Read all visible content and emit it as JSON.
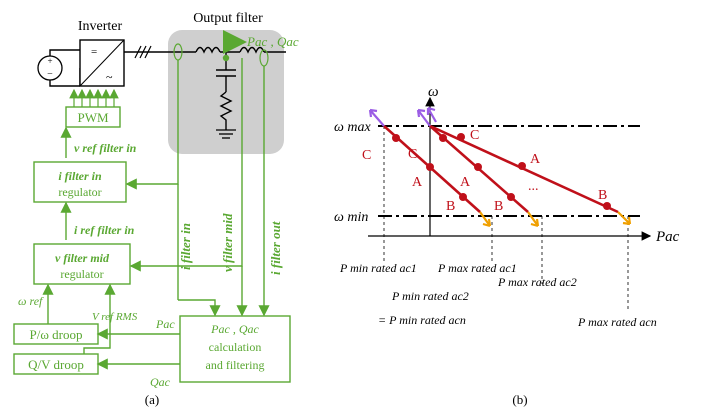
{
  "panel_a": {
    "caption": "(a)",
    "inverter_label": "Inverter",
    "output_filter_label": "Output filter",
    "pac_qac_label": "Pac , Qac",
    "pwm": "PWM",
    "v_ref_filter_in": "v ref filter in",
    "i_filter_in_reg_1": "i filter in",
    "i_filter_in_reg_2": "regulator",
    "i_ref_filter_in": "i ref filter in",
    "v_filter_mid_reg_1": "v filter mid",
    "v_filter_mid_reg_2": "regulator",
    "omega_ref": "ω ref",
    "v_ref_rms": "V ref RMS",
    "p_omega_droop": "P/ω droop",
    "q_v_droop": "Q/V droop",
    "pac": "Pac",
    "qac": "Qac",
    "calc_1": "Pac , Qac",
    "calc_2": "calculation",
    "calc_3": "and filtering",
    "i_filter_in": "i filter in",
    "v_filter_mid": "v filter mid",
    "i_filter_out": "i filter out"
  },
  "panel_b": {
    "caption": "(b)",
    "y_axis": "ω",
    "x_axis": "Pac",
    "omega_max": "ω max",
    "omega_min": "ω min",
    "pmin1": "P min rated ac1",
    "pmax1": "P max rated ac1",
    "pmin2": "P min rated ac2",
    "pmax2": "P max rated ac2",
    "pmin_n": "= P min rated acn",
    "pmax_n": "P max rated acn",
    "point_a": "A",
    "point_b": "B",
    "point_c": "C",
    "ellipsis": "..."
  },
  "colors": {
    "control": "#5aa832",
    "droop_curve": "#c0101a",
    "arrow_up": "#9b5de5",
    "arrow_down": "#f0a000",
    "filter_box": "#cfcfcf"
  }
}
